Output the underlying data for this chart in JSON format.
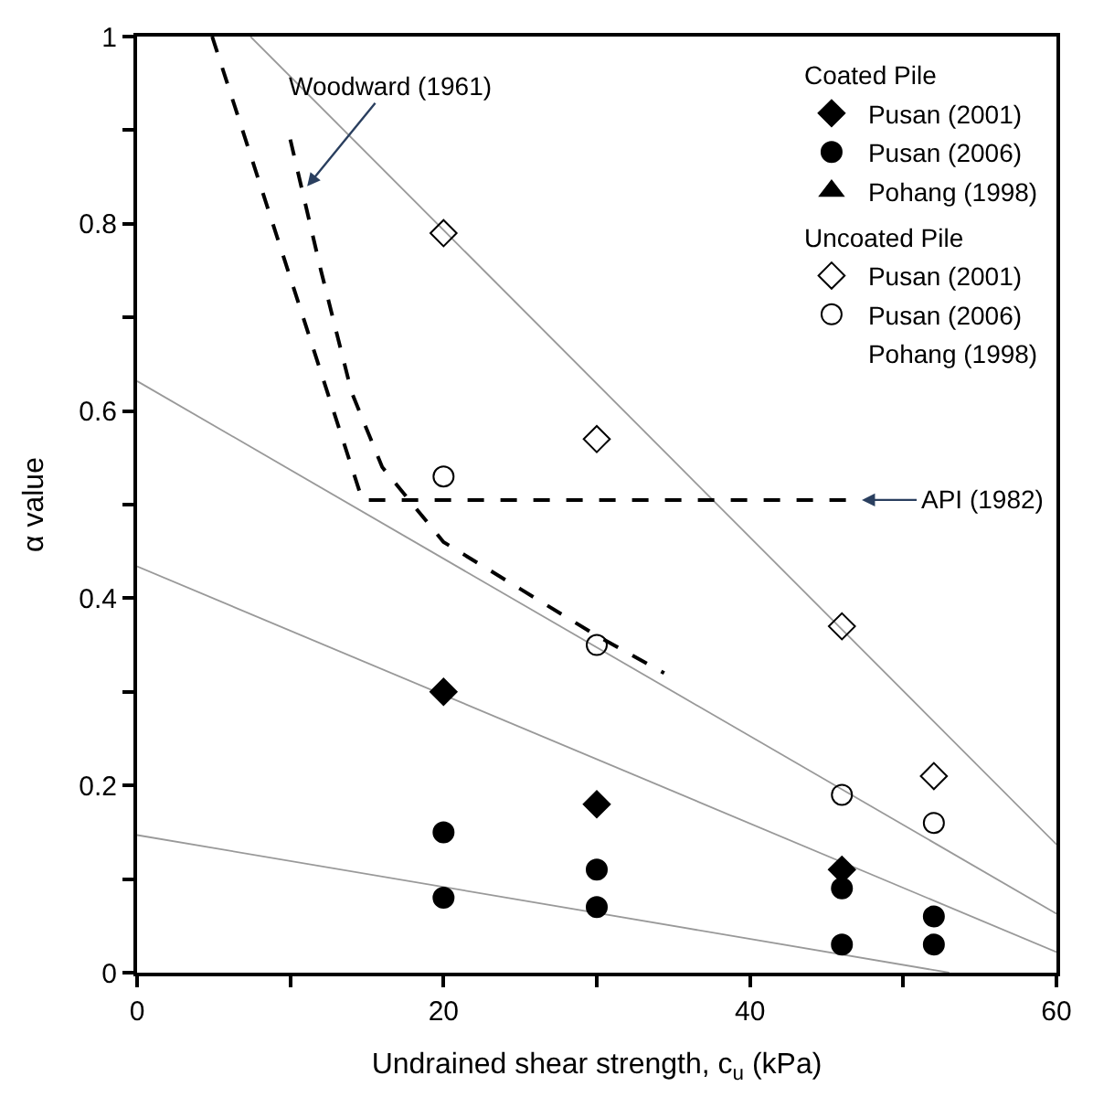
{
  "chart_data": {
    "type": "scatter",
    "xlabel": "Undrained shear strength, c$_{u}$ (kPa)",
    "ylabel": "α value",
    "xlim": [
      0,
      60
    ],
    "xticks": [
      0,
      {
        "value": 10,
        "label": null
      },
      20,
      {
        "value": 30,
        "label": null
      },
      40,
      {
        "value": 50,
        "label": null
      },
      60
    ],
    "ylim": [
      0,
      1
    ],
    "yticks": [
      0,
      {
        "value": 0.1,
        "label": null
      },
      0.2,
      {
        "value": 0.3,
        "label": null
      },
      0.4,
      {
        "value": 0.5,
        "label": null
      },
      0.6,
      {
        "value": 0.7,
        "label": null
      },
      0.8,
      {
        "value": 0.9,
        "label": null
      },
      1
    ],
    "legend": "top right",
    "legend_title": [
      "Coated Pile",
      "Uncoated Pile"
    ],
    "series": [
      {
        "type": "line",
        "color": "#999999",
        "line_style": "solid",
        "x": [
          7.4,
          60
        ],
        "values": [
          1,
          0.137
        ]
      },
      {
        "type": "line",
        "color": "#999999",
        "line_style": "solid",
        "x": [
          0,
          60
        ],
        "values": [
          0.632,
          0.063
        ]
      },
      {
        "type": "line",
        "color": "#999999",
        "line_style": "solid",
        "x": [
          0,
          60
        ],
        "values": [
          0.434,
          0.022
        ]
      },
      {
        "type": "line",
        "color": "#999999",
        "line_style": "solid",
        "x": [
          0,
          53
        ],
        "values": [
          0.147,
          0
        ]
      },
      {
        "type": "line",
        "color": "#000000",
        "line_style": "dashed",
        "x": [
          10,
          12,
          14,
          16,
          20,
          25,
          30,
          34.4
        ],
        "values": [
          0.89,
          0.75,
          0.62,
          0.54,
          0.46,
          0.41,
          0.36,
          0.32
        ]
      },
      {
        "type": "line",
        "color": "#000000",
        "line_style": "dashed",
        "x": [
          4.9,
          14.7,
          47.3
        ],
        "values": [
          1,
          0.505,
          0.505
        ]
      },
      {
        "name": "Pusan (2001)",
        "color": "#000000",
        "marker": "diamond",
        "x": [
          20,
          30,
          46
        ],
        "values": [
          0.3,
          0.18,
          0.11
        ]
      },
      {
        "name": "Pusan (2006)",
        "color": "#000000",
        "marker": "circle",
        "x": [
          20,
          20,
          30,
          30,
          46,
          46,
          52,
          52
        ],
        "values": [
          0.15,
          0.08,
          0.11,
          0.07,
          0.09,
          0.03,
          0.06,
          0.03
        ]
      },
      {
        "name": "Pohang (1998)",
        "color": "#000000",
        "marker": "triangle"
      },
      {
        "name": "Pusan (2001)",
        "color": "#000000",
        "marker": "diamond-open",
        "x": [
          20,
          30,
          46,
          52
        ],
        "values": [
          0.79,
          0.57,
          0.37,
          0.21
        ]
      },
      {
        "name": "Pusan (2006)",
        "color": "#000000",
        "marker": "circle-open",
        "x": [
          20,
          30,
          46,
          52
        ],
        "values": [
          0.53,
          0.35,
          0.19,
          0.16
        ]
      },
      {
        "name": "Pohang (1998)",
        "marker": "none"
      }
    ],
    "annotations": [
      {
        "text": "Woodward (1961)",
        "x": 11.1,
        "y": 0.84
      },
      {
        "text": "API (1982)",
        "x": 47.3,
        "y": 0.505
      }
    ]
  }
}
